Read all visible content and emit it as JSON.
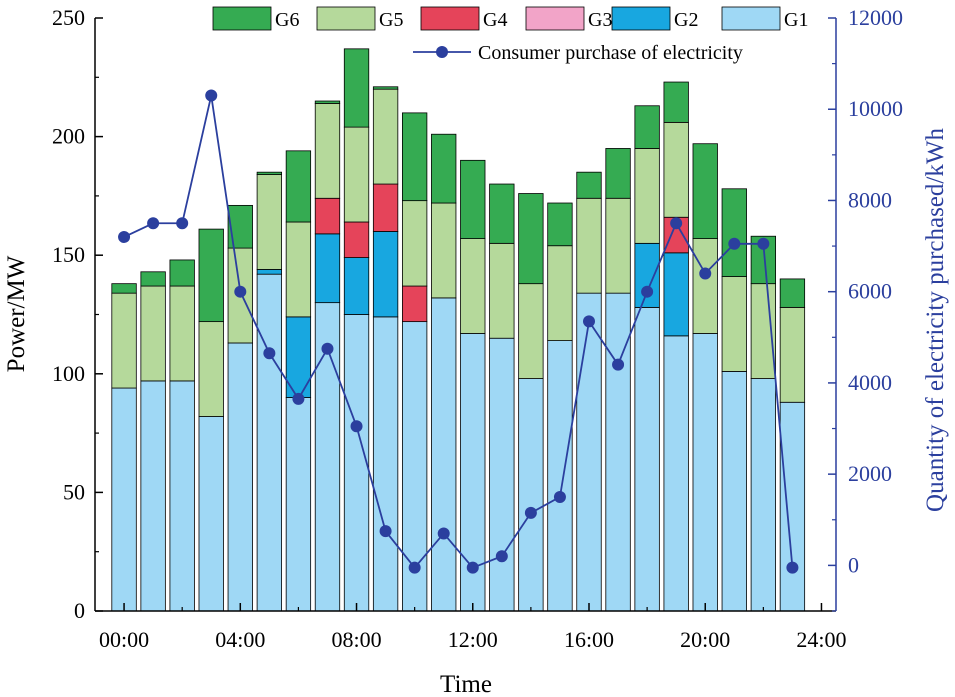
{
  "chart_data": {
    "type": "stacked-bar-line",
    "x_tick_labels": [
      "00:00",
      "04:00",
      "08:00",
      "12:00",
      "16:00",
      "20:00",
      "24:00"
    ],
    "x_tick_hours": [
      0,
      4,
      8,
      12,
      16,
      20,
      24
    ],
    "hours": [
      0,
      1,
      2,
      3,
      4,
      5,
      6,
      7,
      8,
      9,
      10,
      11,
      12,
      13,
      14,
      15,
      16,
      17,
      18,
      19,
      20,
      21,
      22,
      23
    ],
    "xlabel": "Time",
    "ylabel": "Power/MW",
    "y2label": "Quantity of electricity purchased/kWh",
    "xlim": [
      -1,
      24.5
    ],
    "ylim": [
      0,
      250
    ],
    "y2lim": [
      -1000,
      12000
    ],
    "yticks": [
      0,
      50,
      100,
      150,
      200,
      250
    ],
    "y2ticks": [
      0,
      2000,
      4000,
      6000,
      8000,
      10000,
      12000
    ],
    "series": [
      {
        "name": "G1",
        "color": "#9fd8f5",
        "values": [
          94,
          97,
          97,
          82,
          113,
          142,
          90,
          130,
          125,
          124,
          122,
          132,
          117,
          115,
          98,
          114,
          134,
          134,
          128,
          116,
          117,
          101,
          98,
          88
        ]
      },
      {
        "name": "G2",
        "color": "#18a7e0",
        "values": [
          0,
          0,
          0,
          0,
          0,
          2,
          34,
          29,
          24,
          36,
          0,
          0,
          0,
          0,
          0,
          0,
          0,
          0,
          27,
          35,
          0,
          0,
          0,
          0
        ]
      },
      {
        "name": "G3",
        "color": "#f2a4c8",
        "values": [
          0,
          0,
          0,
          0,
          0,
          0,
          0,
          0,
          0,
          0,
          0,
          0,
          0,
          0,
          0,
          0,
          0,
          0,
          0,
          0,
          0,
          0,
          0,
          0
        ]
      },
      {
        "name": "G4",
        "color": "#e5445a",
        "values": [
          0,
          0,
          0,
          0,
          0,
          0,
          0,
          15,
          15,
          20,
          15,
          0,
          0,
          0,
          0,
          0,
          0,
          0,
          0,
          15,
          0,
          0,
          0,
          0
        ]
      },
      {
        "name": "G5",
        "color": "#b5d99b",
        "values": [
          40,
          40,
          40,
          40,
          40,
          40,
          40,
          40,
          40,
          40,
          36,
          40,
          40,
          40,
          40,
          40,
          40,
          40,
          40,
          40,
          40,
          40,
          40,
          40
        ]
      },
      {
        "name": "G6",
        "color": "#35ab52",
        "values": [
          4,
          6,
          11,
          39,
          18,
          1,
          30,
          1,
          33,
          1,
          37,
          29,
          33,
          25,
          38,
          18,
          11,
          21,
          18,
          17,
          40,
          37,
          20,
          12
        ]
      }
    ],
    "line": {
      "name": "Consumer purchase of electricity",
      "color": "#2b3f9e",
      "values": [
        7200,
        7500,
        7500,
        10300,
        6000,
        4650,
        3650,
        4750,
        3050,
        750,
        -50,
        700,
        -50,
        200,
        1150,
        1500,
        5350,
        4400,
        6000,
        7500,
        6400,
        7050,
        7050,
        -50
      ]
    },
    "legend_row1": [
      "G6",
      "G5",
      "G4",
      "G3",
      "G2",
      "G1"
    ]
  }
}
